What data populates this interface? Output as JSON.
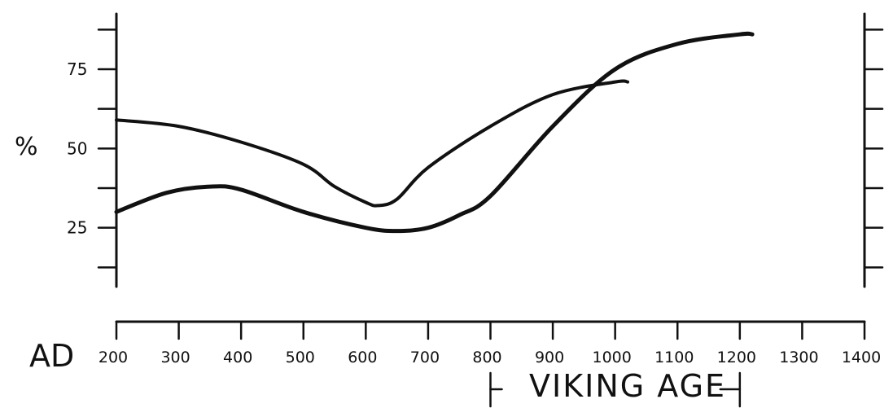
{
  "chart_data": {
    "type": "line",
    "title": "",
    "ylabel": "%",
    "xlabel_prefix": "AD",
    "ylim": [
      0,
      90
    ],
    "xlim": [
      200,
      1400
    ],
    "y_tick_labels": [
      "25",
      "50",
      "75"
    ],
    "x_tick_labels": [
      "200",
      "300",
      "400",
      "500",
      "600",
      "700",
      "800",
      "900",
      "1000",
      "1100",
      "1200",
      "1300",
      "1400"
    ],
    "annotation": {
      "text": "VIKING AGE",
      "start": 800,
      "end": 1200
    },
    "series": [
      {
        "x": [
          200,
          300,
          400,
          500,
          550,
          600,
          620,
          650,
          700,
          800,
          900,
          1000,
          1020
        ],
        "y": [
          59,
          57,
          52,
          45,
          38,
          33,
          32,
          34,
          44,
          57,
          67,
          71,
          71
        ]
      },
      {
        "x": [
          200,
          280,
          350,
          400,
          500,
          600,
          650,
          700,
          750,
          800,
          900,
          1000,
          1100,
          1200,
          1220
        ],
        "y": [
          30,
          36,
          38,
          37,
          30,
          25,
          24,
          25,
          29,
          35,
          57,
          75,
          83,
          86,
          86
        ]
      }
    ]
  }
}
